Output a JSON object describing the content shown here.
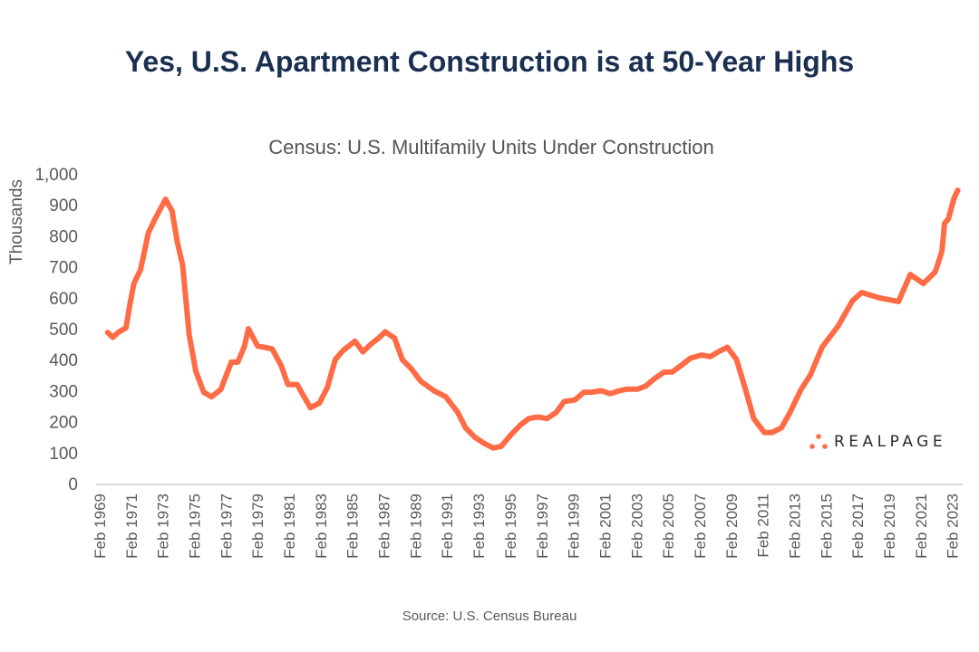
{
  "title": "Yes, U.S. Apartment Construction is at 50-Year Highs",
  "source": "Source: U.S. Census Bureau",
  "logo_text": "REALPAGE",
  "colors": {
    "line": "#ff6b45",
    "title": "#1b3051",
    "axis_text": "#595959",
    "axis_line": "#d9d9d9"
  },
  "chart_data": {
    "type": "line",
    "title": "Census: U.S. Multifamily Units Under Construction",
    "xlabel": "",
    "ylabel": "Thousands",
    "ylim": [
      0,
      1000
    ],
    "yticks": [
      "0",
      "100",
      "200",
      "300",
      "400",
      "500",
      "600",
      "700",
      "800",
      "900",
      "1,000"
    ],
    "xticks": [
      "Feb 1969",
      "Feb 1971",
      "Feb 1973",
      "Feb 1975",
      "Feb 1977",
      "Feb 1979",
      "Feb 1981",
      "Feb 1983",
      "Feb 1985",
      "Feb 1987",
      "Feb 1989",
      "Feb 1991",
      "Feb 1993",
      "Feb 1995",
      "Feb 1997",
      "Feb 1999",
      "Feb 2001",
      "Feb 2003",
      "Feb 2005",
      "Feb 2007",
      "Feb 2009",
      "Feb 2011",
      "Feb 2013",
      "Feb 2015",
      "Feb 2017",
      "Feb 2019",
      "Feb 2021",
      "Feb 2023"
    ],
    "grid": false,
    "legend": "none",
    "series": [
      {
        "x": [
          "1969-08",
          "1969-12",
          "1970-04",
          "1970-10",
          "1971-01",
          "1971-04",
          "1971-09",
          "1972-03",
          "1972-08",
          "1973-04",
          "1973-09",
          "1974-01",
          "1974-05",
          "1974-10",
          "1975-03",
          "1975-09",
          "1976-03",
          "1976-10",
          "1977-06",
          "1977-11",
          "1978-04",
          "1978-07",
          "1979-02",
          "1980-01",
          "1980-08",
          "1981-01",
          "1981-08",
          "1982-06",
          "1983-01",
          "1983-07",
          "1984-01",
          "1984-07",
          "1985-04",
          "1985-10",
          "1986-04",
          "1986-10",
          "1987-03",
          "1987-10",
          "1988-04",
          "1988-11",
          "1989-06",
          "1990-04",
          "1991-01",
          "1991-10",
          "1992-04",
          "1992-11",
          "1993-06",
          "1994-01",
          "1994-07",
          "1995-03",
          "1995-10",
          "1996-04",
          "1996-11",
          "1997-06",
          "1998-01",
          "1998-07",
          "1999-03",
          "1999-10",
          "2000-04",
          "2000-11",
          "2001-06",
          "2002-01",
          "2002-07",
          "2003-03",
          "2003-09",
          "2004-04",
          "2004-11",
          "2005-05",
          "2006-01",
          "2006-07",
          "2007-03",
          "2007-10",
          "2008-04",
          "2008-11",
          "2009-06",
          "2010-01",
          "2010-07",
          "2011-03",
          "2011-09",
          "2012-04",
          "2012-10",
          "2013-07",
          "2014-02",
          "2014-11",
          "2015-11",
          "2016-10",
          "2017-05",
          "2018-06",
          "2019-09",
          "2020-06",
          "2021-04",
          "2022-01",
          "2022-06",
          "2022-08",
          "2022-11",
          "2023-03",
          "2023-06"
        ],
        "values": [
          488,
          472,
          488,
          503,
          580,
          646,
          690,
          810,
          854,
          918,
          880,
          780,
          705,
          480,
          363,
          295,
          280,
          304,
          392,
          392,
          444,
          500,
          444,
          435,
          380,
          320,
          320,
          245,
          260,
          310,
          400,
          430,
          460,
          425,
          450,
          470,
          490,
          470,
          400,
          370,
          330,
          300,
          280,
          230,
          180,
          150,
          130,
          115,
          120,
          160,
          190,
          210,
          215,
          210,
          230,
          265,
          270,
          295,
          295,
          300,
          290,
          300,
          305,
          305,
          315,
          340,
          360,
          360,
          385,
          405,
          415,
          410,
          425,
          440,
          400,
          300,
          210,
          165,
          165,
          180,
          225,
          304,
          350,
          441,
          508,
          590,
          617,
          600,
          588,
          675,
          646,
          684,
          750,
          840,
          855,
          918,
          947
        ]
      }
    ]
  }
}
